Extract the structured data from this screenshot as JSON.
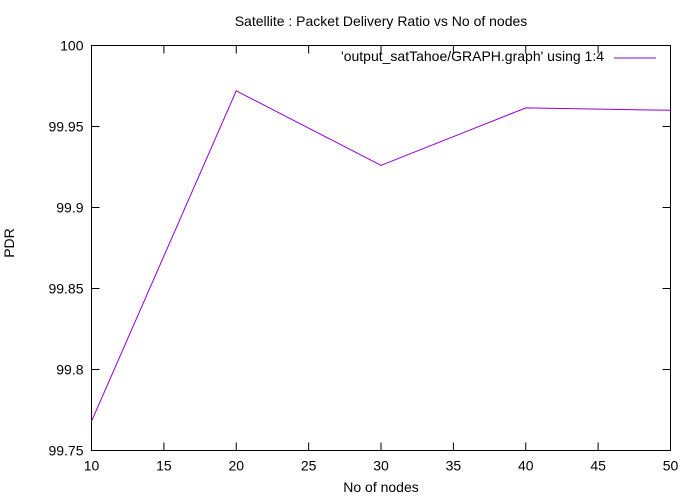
{
  "chart_data": {
    "type": "line",
    "title": "Satellite : Packet Delivery Ratio vs No of nodes",
    "xlabel": "No of nodes",
    "ylabel": "PDR",
    "xlim": [
      10,
      50
    ],
    "ylim": [
      99.75,
      100
    ],
    "xticks": [
      10,
      15,
      20,
      25,
      30,
      35,
      40,
      45,
      50
    ],
    "yticks": [
      99.75,
      99.8,
      99.85,
      99.9,
      99.95,
      100
    ],
    "ytick_labels": [
      "99.75",
      "99.8",
      "99.85",
      "99.9",
      "99.95",
      "100"
    ],
    "grid": false,
    "legend_position": "top-right",
    "series": [
      {
        "name": "'output_satTahoe/GRAPH.graph' using 1:4",
        "color": "#9400d3",
        "x": [
          10,
          20,
          30,
          40,
          50
        ],
        "y": [
          99.768,
          99.972,
          99.926,
          99.9615,
          99.96
        ]
      }
    ]
  }
}
